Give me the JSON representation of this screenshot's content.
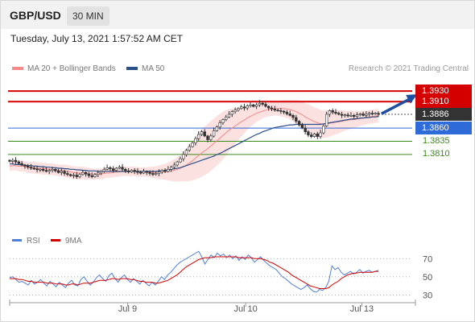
{
  "header": {
    "symbol": "GBP/USD",
    "timeframe": "30 MIN",
    "datetime": "Tuesday, July 13, 2021 1:57:52 AM CET"
  },
  "legend": {
    "bollinger": "MA 20 + Bollinger Bands",
    "ma50": "MA 50",
    "credit": "Research © 2021 Trading Central"
  },
  "colors": {
    "resistance": "#d40000",
    "support_blue": "#2f6ad9",
    "support_green": "#3a8a1a",
    "bollinger": "#f28a8a",
    "ma50": "#2b4f88",
    "rsi": "#4f7fd8",
    "rsi_ma": "#d40000",
    "arrow": "#1f4fa0",
    "current": "#333333"
  },
  "chart_data": [
    {
      "type": "candlestick",
      "title": "GBP/USD 30 MIN",
      "x_ticks": [
        "Jul 9",
        "Jul 10",
        "Jul 13"
      ],
      "ylim": [
        1.372,
        1.395
      ],
      "levels": [
        {
          "label": "1.3930",
          "value": 1.393,
          "kind": "resistance"
        },
        {
          "label": "1.3910",
          "value": 1.391,
          "kind": "resistance"
        },
        {
          "label": "1.3886",
          "value": 1.3886,
          "kind": "current"
        },
        {
          "label": "1.3860",
          "value": 1.386,
          "kind": "pivot"
        },
        {
          "label": "1.3835",
          "value": 1.3835,
          "kind": "support"
        },
        {
          "label": "1.3810",
          "value": 1.381,
          "kind": "support"
        }
      ],
      "closes": [
        1.3797,
        1.3799,
        1.3796,
        1.3793,
        1.379,
        1.3788,
        1.3786,
        1.3784,
        1.3783,
        1.3781,
        1.3782,
        1.378,
        1.3778,
        1.378,
        1.3782,
        1.3779,
        1.3776,
        1.3778,
        1.3774,
        1.3772,
        1.377,
        1.3771,
        1.3768,
        1.3772,
        1.3776,
        1.3773,
        1.377,
        1.3768,
        1.3772,
        1.3775,
        1.3778,
        1.3782,
        1.3785,
        1.3783,
        1.378,
        1.3784,
        1.3786,
        1.3782,
        1.3779,
        1.3777,
        1.378,
        1.3778,
        1.3776,
        1.3775,
        1.3778,
        1.3776,
        1.3774,
        1.3772,
        1.3774,
        1.3777,
        1.378,
        1.3778,
        1.3782,
        1.3786,
        1.379,
        1.3796,
        1.3802,
        1.381,
        1.3818,
        1.3825,
        1.3832,
        1.384,
        1.3848,
        1.3853,
        1.3845,
        1.3838,
        1.3845,
        1.3855,
        1.3862,
        1.387,
        1.3876,
        1.3881,
        1.3886,
        1.3891,
        1.3894,
        1.3897,
        1.39,
        1.3898,
        1.3902,
        1.3904,
        1.3901,
        1.3904,
        1.3907,
        1.3905,
        1.3901,
        1.3898,
        1.3896,
        1.3894,
        1.3893,
        1.3892,
        1.389,
        1.3887,
        1.3884,
        1.388,
        1.3873,
        1.3866,
        1.386,
        1.3853,
        1.3847,
        1.3844,
        1.3849,
        1.3844,
        1.3851,
        1.3864,
        1.3886,
        1.3893,
        1.389,
        1.3888,
        1.3886,
        1.3884,
        1.3885,
        1.3883,
        1.3884,
        1.3882,
        1.3885,
        1.3887,
        1.3884,
        1.3886,
        1.3888,
        1.3887,
        1.3888,
        1.3886
      ],
      "ma20": [
        1.3788,
        1.3789,
        1.3789,
        1.3788,
        1.3788,
        1.3787,
        1.3786,
        1.3785,
        1.3785,
        1.3784,
        1.3784,
        1.3783,
        1.3783,
        1.3782,
        1.3782,
        1.3781,
        1.378,
        1.378,
        1.3779,
        1.3778,
        1.3777,
        1.3776,
        1.3775,
        1.3775,
        1.3775,
        1.3774,
        1.3774,
        1.3773,
        1.3773,
        1.3773,
        1.3773,
        1.3774,
        1.3775,
        1.3775,
        1.3776,
        1.3777,
        1.3777,
        1.3778,
        1.3778,
        1.3778,
        1.3778,
        1.3778,
        1.3777,
        1.3777,
        1.3777,
        1.3777,
        1.3777,
        1.3776,
        1.3776,
        1.3776,
        1.3777,
        1.3777,
        1.3778,
        1.3779,
        1.378,
        1.3782,
        1.3784,
        1.3787,
        1.379,
        1.3794,
        1.3798,
        1.3803,
        1.3808,
        1.3813,
        1.3817,
        1.3821,
        1.3826,
        1.3831,
        1.3836,
        1.3841,
        1.3846,
        1.3851,
        1.3856,
        1.386,
        1.3864,
        1.3868,
        1.3872,
        1.3875,
        1.3879,
        1.3882,
        1.3885,
        1.3888,
        1.389,
        1.3892,
        1.3894,
        1.3895,
        1.3896,
        1.3897,
        1.3897,
        1.3897,
        1.3897,
        1.3896,
        1.3895,
        1.3893,
        1.3891,
        1.3888,
        1.3885,
        1.3881,
        1.3878,
        1.3875,
        1.3872,
        1.387,
        1.3868,
        1.3867,
        1.3868,
        1.3869,
        1.387,
        1.3871,
        1.3872,
        1.3873,
        1.3874,
        1.3875,
        1.3876,
        1.3876,
        1.3877,
        1.3878,
        1.3879,
        1.388,
        1.3881,
        1.3882,
        1.3883,
        1.3883
      ],
      "ma50": [
        1.3792,
        1.3792,
        1.3791,
        1.3791,
        1.379,
        1.379,
        1.3789,
        1.3789,
        1.3788,
        1.3788,
        1.3787,
        1.3787,
        1.3786,
        1.3786,
        1.3785,
        1.3785,
        1.3784,
        1.3784,
        1.3783,
        1.3783,
        1.3782,
        1.3782,
        1.3781,
        1.3781,
        1.378,
        1.378,
        1.3779,
        1.3779,
        1.3779,
        1.3778,
        1.3778,
        1.3778,
        1.3778,
        1.3778,
        1.3778,
        1.3778,
        1.3778,
        1.3778,
        1.3778,
        1.3778,
        1.3778,
        1.3778,
        1.3778,
        1.3778,
        1.3778,
        1.3778,
        1.3778,
        1.3778,
        1.3778,
        1.3779,
        1.3779,
        1.378,
        1.3781,
        1.3782,
        1.3783,
        1.3784,
        1.3785,
        1.3787,
        1.3789,
        1.3791,
        1.3793,
        1.3795,
        1.3797,
        1.3799,
        1.3801,
        1.3803,
        1.3805,
        1.3807,
        1.381,
        1.3812,
        1.3815,
        1.3818,
        1.3821,
        1.3824,
        1.3827,
        1.383,
        1.3833,
        1.3836,
        1.3839,
        1.3842,
        1.3845,
        1.3848,
        1.385,
        1.3853,
        1.3855,
        1.3857,
        1.3859,
        1.3861,
        1.3862,
        1.3863,
        1.3864,
        1.3865,
        1.3866,
        1.3866,
        1.3867,
        1.3867,
        1.3867,
        1.3867,
        1.3867,
        1.3867,
        1.3867,
        1.3867,
        1.3867,
        1.3868,
        1.3869,
        1.387,
        1.3871,
        1.3872,
        1.3873,
        1.3874,
        1.3875,
        1.3876,
        1.3877,
        1.3877,
        1.3878,
        1.3879,
        1.3879,
        1.388,
        1.388,
        1.3881,
        1.3881,
        1.3882
      ],
      "band_width": [
        0.0009,
        0.0009,
        0.0009,
        0.001,
        0.001,
        0.001,
        0.001,
        0.0011,
        0.0011,
        0.0011,
        0.0011,
        0.0011,
        0.0011,
        0.0011,
        0.0011,
        0.0011,
        0.0011,
        0.0011,
        0.0012,
        0.0012,
        0.0012,
        0.0012,
        0.0012,
        0.0012,
        0.0012,
        0.0012,
        0.0011,
        0.0011,
        0.001,
        0.001,
        0.001,
        0.001,
        0.0009,
        0.0009,
        0.0009,
        0.0009,
        0.0009,
        0.0009,
        0.0009,
        0.0009,
        0.0009,
        0.0009,
        0.0009,
        0.0009,
        0.0009,
        0.0009,
        0.001,
        0.0011,
        0.0012,
        0.0013,
        0.0014,
        0.0015,
        0.0017,
        0.0019,
        0.0021,
        0.0023,
        0.0025,
        0.0028,
        0.0031,
        0.0034,
        0.0037,
        0.004,
        0.0043,
        0.0045,
        0.0046,
        0.0047,
        0.0047,
        0.0047,
        0.0047,
        0.0046,
        0.0045,
        0.0043,
        0.004,
        0.0037,
        0.0034,
        0.0031,
        0.0028,
        0.0025,
        0.0022,
        0.002,
        0.0018,
        0.0016,
        0.0015,
        0.0014,
        0.0013,
        0.0013,
        0.0013,
        0.0013,
        0.0014,
        0.0015,
        0.0016,
        0.0017,
        0.0018,
        0.002,
        0.0022,
        0.0024,
        0.0025,
        0.0026,
        0.0027,
        0.0027,
        0.0027,
        0.0027,
        0.0027,
        0.0026,
        0.0026,
        0.0025,
        0.0024,
        0.0023,
        0.0022,
        0.002,
        0.0019,
        0.0018,
        0.0017,
        0.0016,
        0.0015,
        0.0014,
        0.0014,
        0.0013,
        0.0013,
        0.0013,
        0.0013,
        0.0013
      ],
      "arrow": {
        "from": [
          122,
          1.3887
        ],
        "to": [
          133,
          1.393
        ]
      }
    },
    {
      "type": "line",
      "title": "RSI",
      "series": [
        {
          "name": "RSI"
        },
        {
          "name": "9MA"
        }
      ],
      "yticks": [
        70,
        50,
        30
      ],
      "ylim": [
        25,
        80
      ],
      "rsi": [
        49,
        50,
        47,
        44,
        45,
        43,
        41,
        46,
        42,
        44,
        47,
        43,
        40,
        45,
        42,
        39,
        44,
        41,
        38,
        43,
        46,
        41,
        40,
        47,
        50,
        45,
        41,
        44,
        49,
        52,
        48,
        45,
        51,
        54,
        48,
        44,
        49,
        52,
        47,
        44,
        48,
        45,
        42,
        46,
        43,
        40,
        44,
        41,
        45,
        50,
        47,
        52,
        55,
        59,
        63,
        66,
        68,
        70,
        72,
        74,
        76,
        78,
        72,
        64,
        69,
        74,
        71,
        76,
        73,
        75,
        71,
        74,
        70,
        73,
        68,
        72,
        69,
        74,
        71,
        66,
        69,
        72,
        68,
        65,
        62,
        60,
        58,
        54,
        50,
        48,
        45,
        42,
        40,
        38,
        36,
        38,
        41,
        37,
        34,
        33,
        36,
        35,
        38,
        45,
        62,
        58,
        60,
        55,
        52,
        54,
        56,
        53,
        55,
        58,
        54,
        56,
        57,
        55,
        56,
        57
      ],
      "rsi_ma": [
        48,
        48,
        48,
        47,
        47,
        46,
        45,
        45,
        44,
        44,
        44,
        44,
        43,
        43,
        43,
        42,
        42,
        42,
        41,
        41,
        42,
        42,
        41,
        42,
        43,
        43,
        43,
        44,
        45,
        46,
        46,
        46,
        47,
        48,
        48,
        47,
        48,
        48,
        48,
        47,
        47,
        46,
        45,
        45,
        44,
        44,
        44,
        43,
        43,
        44,
        45,
        46,
        48,
        50,
        52,
        55,
        58,
        61,
        63,
        65,
        67,
        69,
        70,
        71,
        71,
        71,
        72,
        72,
        72,
        72,
        72,
        72,
        72,
        72,
        71,
        71,
        71,
        71,
        71,
        70,
        70,
        70,
        69,
        68,
        66,
        65,
        63,
        61,
        59,
        57,
        55,
        52,
        50,
        48,
        46,
        44,
        42,
        40,
        39,
        38,
        37,
        37,
        37,
        38,
        41,
        43,
        45,
        48,
        50,
        52,
        53,
        54,
        54,
        55,
        55,
        55,
        55,
        55,
        56,
        56
      ],
      "x_ticks": [
        "Jul 9",
        "Jul 10",
        "Jul 13"
      ]
    }
  ]
}
